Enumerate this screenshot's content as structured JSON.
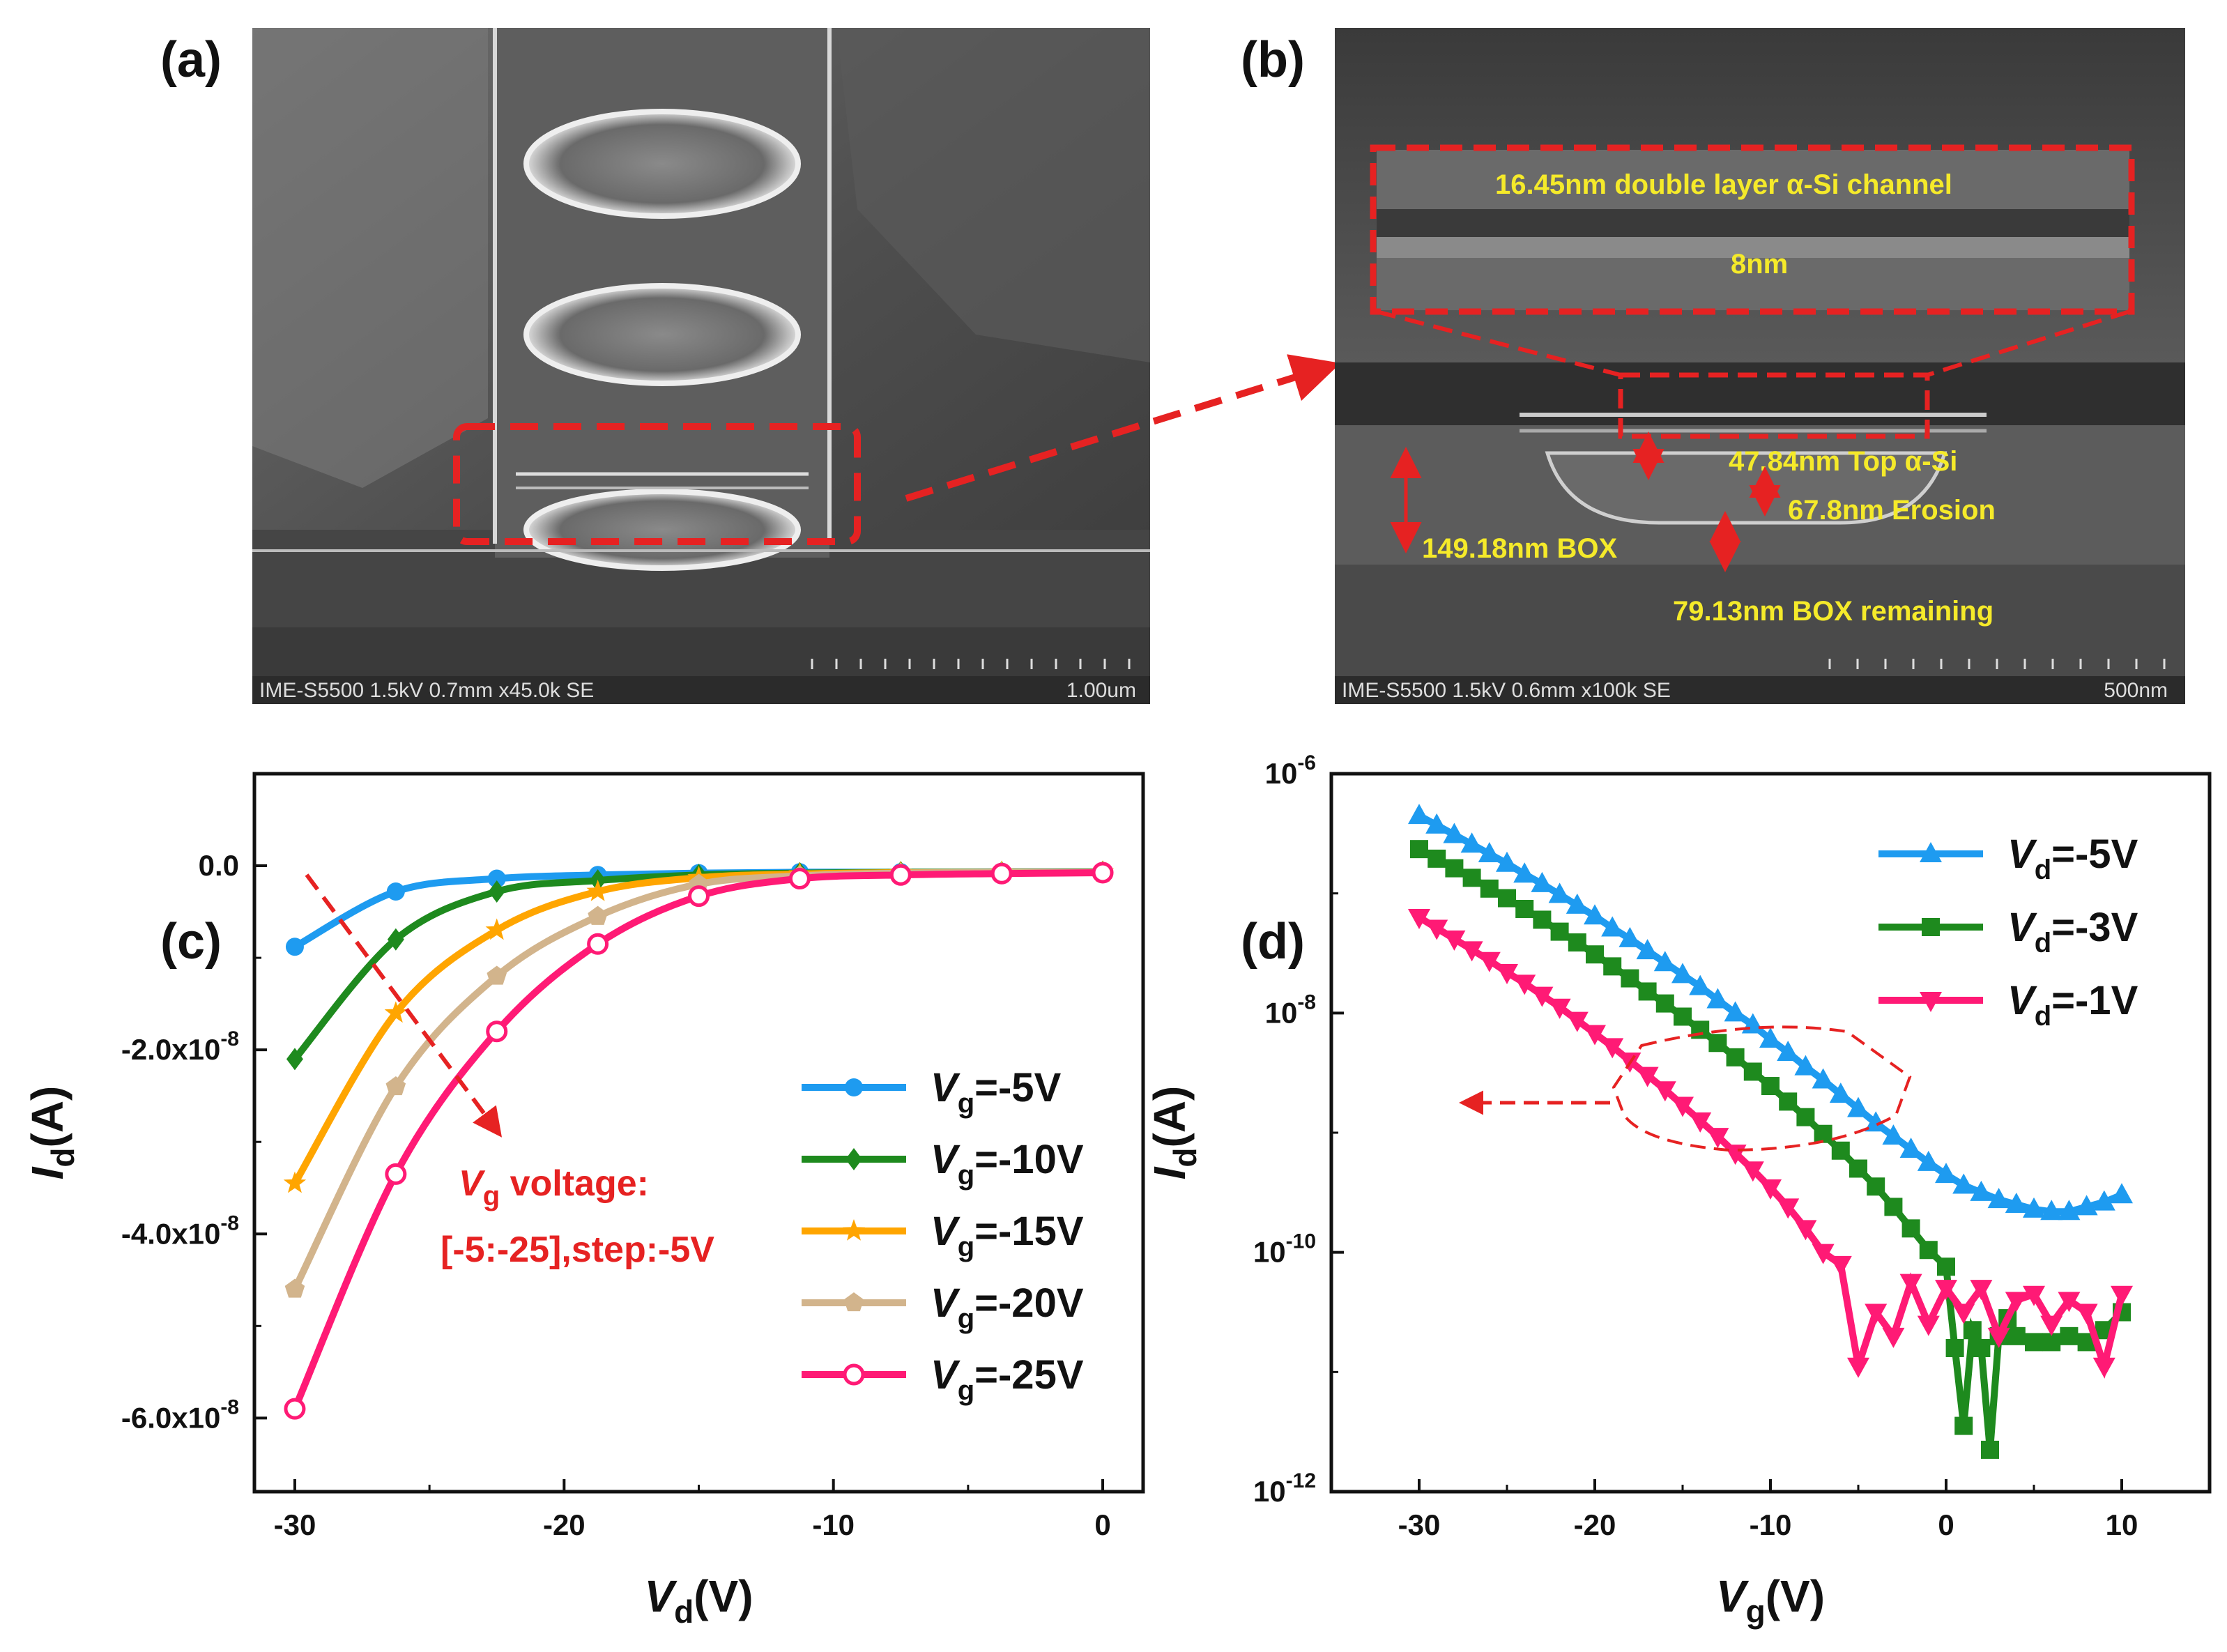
{
  "panels": {
    "a": {
      "label": "(a)",
      "sem_bar": {
        "info": "IME-S5500 1.5kV 0.7mm x45.0k SE",
        "scale": "1.00um"
      }
    },
    "b": {
      "label": "(b)",
      "sem_bar": {
        "info": "IME-S5500 1.5kV 0.6mm x100k SE",
        "scale": "500nm"
      },
      "annotations": {
        "channel": "16.45nm double layer α-Si channel",
        "gap": "8nm",
        "top_si": "47.84nm Top α-Si",
        "erosion": "67.8nm Erosion",
        "box": "149.18nm BOX",
        "box_remaining": "79.13nm BOX remaining"
      }
    },
    "c": {
      "label": "(c)",
      "annotation": {
        "line1_prefix": "V",
        "line1_sub": "g",
        "line1_suffix": " voltage:",
        "line2": "[-5:-25],step:-5V"
      }
    },
    "d": {
      "label": "(d)"
    }
  },
  "colors": {
    "blue": "#1e9bf0",
    "green": "#1e8a1e",
    "orange": "#ffa500",
    "tan": "#d2b48c",
    "pink": "#ff1a75",
    "red": "#e62222",
    "yellow": "#f5ea2a"
  },
  "chart_data": [
    {
      "id": "c",
      "type": "line",
      "title": "",
      "xlabel_main": "V",
      "xlabel_sub": "d",
      "xlabel_unit": "(V)",
      "ylabel_main": "I",
      "ylabel_sub": "d",
      "ylabel_unit": "(A)",
      "xlim": [
        -31.5,
        1.5
      ],
      "ylim": [
        -6.8e-08,
        1e-08
      ],
      "xticks": [
        -30,
        -20,
        -10,
        0
      ],
      "xtick_labels": [
        "-30",
        "-20",
        "-10",
        "0"
      ],
      "yticks": [
        0,
        -2e-08,
        -4e-08,
        -6e-08
      ],
      "ytick_labels": [
        "0.0",
        "-2.0x10-8",
        "-4.0x10-8",
        "-6.0x10-8"
      ],
      "legend_position": "center-right",
      "series": [
        {
          "name_main": "V",
          "name_sub": "g",
          "name_suffix": "=-5V",
          "color": "#1e9bf0",
          "marker": "circle",
          "x": [
            -30,
            -26.25,
            -22.5,
            -18.75,
            -15,
            -11.25,
            -7.5,
            -3.75,
            0
          ],
          "y": [
            -8.8e-09,
            -2.8e-09,
            -1.4e-09,
            -1e-09,
            -8e-10,
            -7e-10,
            -7e-10,
            -6.5e-10,
            -6.5e-10
          ]
        },
        {
          "name_main": "V",
          "name_sub": "g",
          "name_suffix": "=-10V",
          "color": "#1e8a1e",
          "marker": "diamond",
          "x": [
            -30,
            -26.25,
            -22.5,
            -18.75,
            -15,
            -11.25,
            -7.5,
            -3.75,
            0
          ],
          "y": [
            -2.1e-08,
            -8e-09,
            -2.8e-09,
            -1.6e-09,
            -1e-09,
            -8e-10,
            -7e-10,
            -7e-10,
            -6.5e-10
          ]
        },
        {
          "name_main": "V",
          "name_sub": "g",
          "name_suffix": "=-15V",
          "color": "#ffa500",
          "marker": "star",
          "x": [
            -30,
            -26.25,
            -22.5,
            -18.75,
            -15,
            -11.25,
            -7.5,
            -3.75,
            0
          ],
          "y": [
            -3.45e-08,
            -1.6e-08,
            -7e-09,
            -2.8e-09,
            -1.3e-09,
            -9e-10,
            -7.5e-10,
            -7e-10,
            -7e-10
          ]
        },
        {
          "name_main": "V",
          "name_sub": "g",
          "name_suffix": "=-20V",
          "color": "#d2b48c",
          "marker": "pentagon",
          "x": [
            -30,
            -26.25,
            -22.5,
            -18.75,
            -15,
            -11.25,
            -7.5,
            -3.75,
            0
          ],
          "y": [
            -4.6e-08,
            -2.4e-08,
            -1.2e-08,
            -5.5e-09,
            -2e-09,
            -1.1e-09,
            -8e-10,
            -7.5e-10,
            -7e-10
          ]
        },
        {
          "name_main": "V",
          "name_sub": "g",
          "name_suffix": "=-25V",
          "color": "#ff1a75",
          "marker": "open-circle",
          "x": [
            -30,
            -26.25,
            -22.5,
            -18.75,
            -15,
            -11.25,
            -7.5,
            -3.75,
            0
          ],
          "y": [
            -5.9e-08,
            -3.35e-08,
            -1.8e-08,
            -8.5e-09,
            -3.3e-09,
            -1.4e-09,
            -1e-09,
            -8.5e-10,
            -7.5e-10
          ]
        }
      ]
    },
    {
      "id": "d",
      "type": "line",
      "y_scale": "log",
      "title": "",
      "xlabel_main": "V",
      "xlabel_sub": "g",
      "xlabel_unit": "(V)",
      "ylabel_main": "I",
      "ylabel_sub": "d",
      "ylabel_unit": "(A)",
      "xlim": [
        -35,
        15
      ],
      "ylim_log10": [
        -12,
        -6
      ],
      "xticks": [
        -30,
        -20,
        -10,
        0,
        10
      ],
      "xtick_labels": [
        "-30",
        "-20",
        "-10",
        "0",
        "10"
      ],
      "yticks_log10": [
        -6,
        -8,
        -10,
        -12
      ],
      "ytick_labels": [
        "10-6",
        "10-8",
        "10-10",
        "10-12"
      ],
      "legend_position": "top-right",
      "series": [
        {
          "name_main": "V",
          "name_sub": "d",
          "name_suffix": "=-5V",
          "color": "#1e9bf0",
          "marker": "triangle-up",
          "x": [
            -30,
            -29,
            -28,
            -27,
            -26,
            -25,
            -24,
            -23,
            -22,
            -21,
            -20,
            -19,
            -18,
            -17,
            -16,
            -15,
            -14,
            -13,
            -12,
            -11,
            -10,
            -9,
            -8,
            -7,
            -6,
            -5,
            -4,
            -3,
            -2,
            -1,
            0,
            1,
            2,
            3,
            4,
            5,
            6,
            7,
            8,
            9,
            10
          ],
          "y_log10": [
            -6.35,
            -6.43,
            -6.51,
            -6.59,
            -6.67,
            -6.75,
            -6.84,
            -6.92,
            -7.01,
            -7.1,
            -7.19,
            -7.29,
            -7.38,
            -7.48,
            -7.58,
            -7.68,
            -7.78,
            -7.89,
            -8.0,
            -8.1,
            -8.22,
            -8.33,
            -8.45,
            -8.56,
            -8.68,
            -8.8,
            -8.92,
            -9.03,
            -9.14,
            -9.25,
            -9.35,
            -9.44,
            -9.5,
            -9.56,
            -9.6,
            -9.64,
            -9.66,
            -9.66,
            -9.62,
            -9.58,
            -9.52
          ]
        },
        {
          "name_main": "V",
          "name_sub": "d",
          "name_suffix": "=-3V",
          "color": "#1e8a1e",
          "marker": "square",
          "x": [
            -30,
            -29,
            -28,
            -27,
            -26,
            -25,
            -24,
            -23,
            -22,
            -21,
            -20,
            -19,
            -18,
            -17,
            -16,
            -15,
            -14,
            -13,
            -12,
            -11,
            -10,
            -9,
            -8,
            -7,
            -6,
            -5,
            -4,
            -3,
            -2,
            -1,
            0,
            0.5,
            1,
            1.5,
            2,
            2.5,
            3,
            3.5,
            4,
            5,
            6,
            7,
            8,
            9,
            10
          ],
          "y_log10": [
            -6.63,
            -6.71,
            -6.79,
            -6.87,
            -6.96,
            -7.04,
            -7.13,
            -7.22,
            -7.32,
            -7.41,
            -7.51,
            -7.61,
            -7.71,
            -7.82,
            -7.92,
            -8.03,
            -8.14,
            -8.25,
            -8.37,
            -8.49,
            -8.61,
            -8.74,
            -8.87,
            -9.01,
            -9.15,
            -9.3,
            -9.45,
            -9.62,
            -9.8,
            -9.98,
            -10.12,
            -10.8,
            -11.45,
            -10.65,
            -10.8,
            -11.65,
            -10.7,
            -10.55,
            -10.7,
            -10.75,
            -10.75,
            -10.7,
            -10.75,
            -10.65,
            -10.5
          ]
        },
        {
          "name_main": "V",
          "name_sub": "d",
          "name_suffix": "=-1V",
          "color": "#ff1a75",
          "marker": "triangle-down",
          "x": [
            -30,
            -29,
            -28,
            -27,
            -26,
            -25,
            -24,
            -23,
            -22,
            -21,
            -20,
            -19,
            -18,
            -17,
            -16,
            -15,
            -14,
            -13,
            -12,
            -11,
            -10,
            -9,
            -8,
            -7,
            -6,
            -5,
            -4,
            -3,
            -2,
            -1,
            0,
            1,
            2,
            3,
            4,
            5,
            6,
            7,
            8,
            9,
            10
          ],
          "y_log10": [
            -7.2,
            -7.29,
            -7.38,
            -7.47,
            -7.56,
            -7.66,
            -7.75,
            -7.85,
            -7.95,
            -8.06,
            -8.17,
            -8.28,
            -8.4,
            -8.52,
            -8.64,
            -8.77,
            -8.9,
            -9.03,
            -9.17,
            -9.31,
            -9.46,
            -9.62,
            -9.8,
            -10.0,
            -10.1,
            -10.95,
            -10.5,
            -10.7,
            -10.25,
            -10.6,
            -10.3,
            -10.5,
            -10.3,
            -10.7,
            -10.4,
            -10.35,
            -10.6,
            -10.4,
            -10.5,
            -10.95,
            -10.35
          ]
        }
      ]
    }
  ]
}
